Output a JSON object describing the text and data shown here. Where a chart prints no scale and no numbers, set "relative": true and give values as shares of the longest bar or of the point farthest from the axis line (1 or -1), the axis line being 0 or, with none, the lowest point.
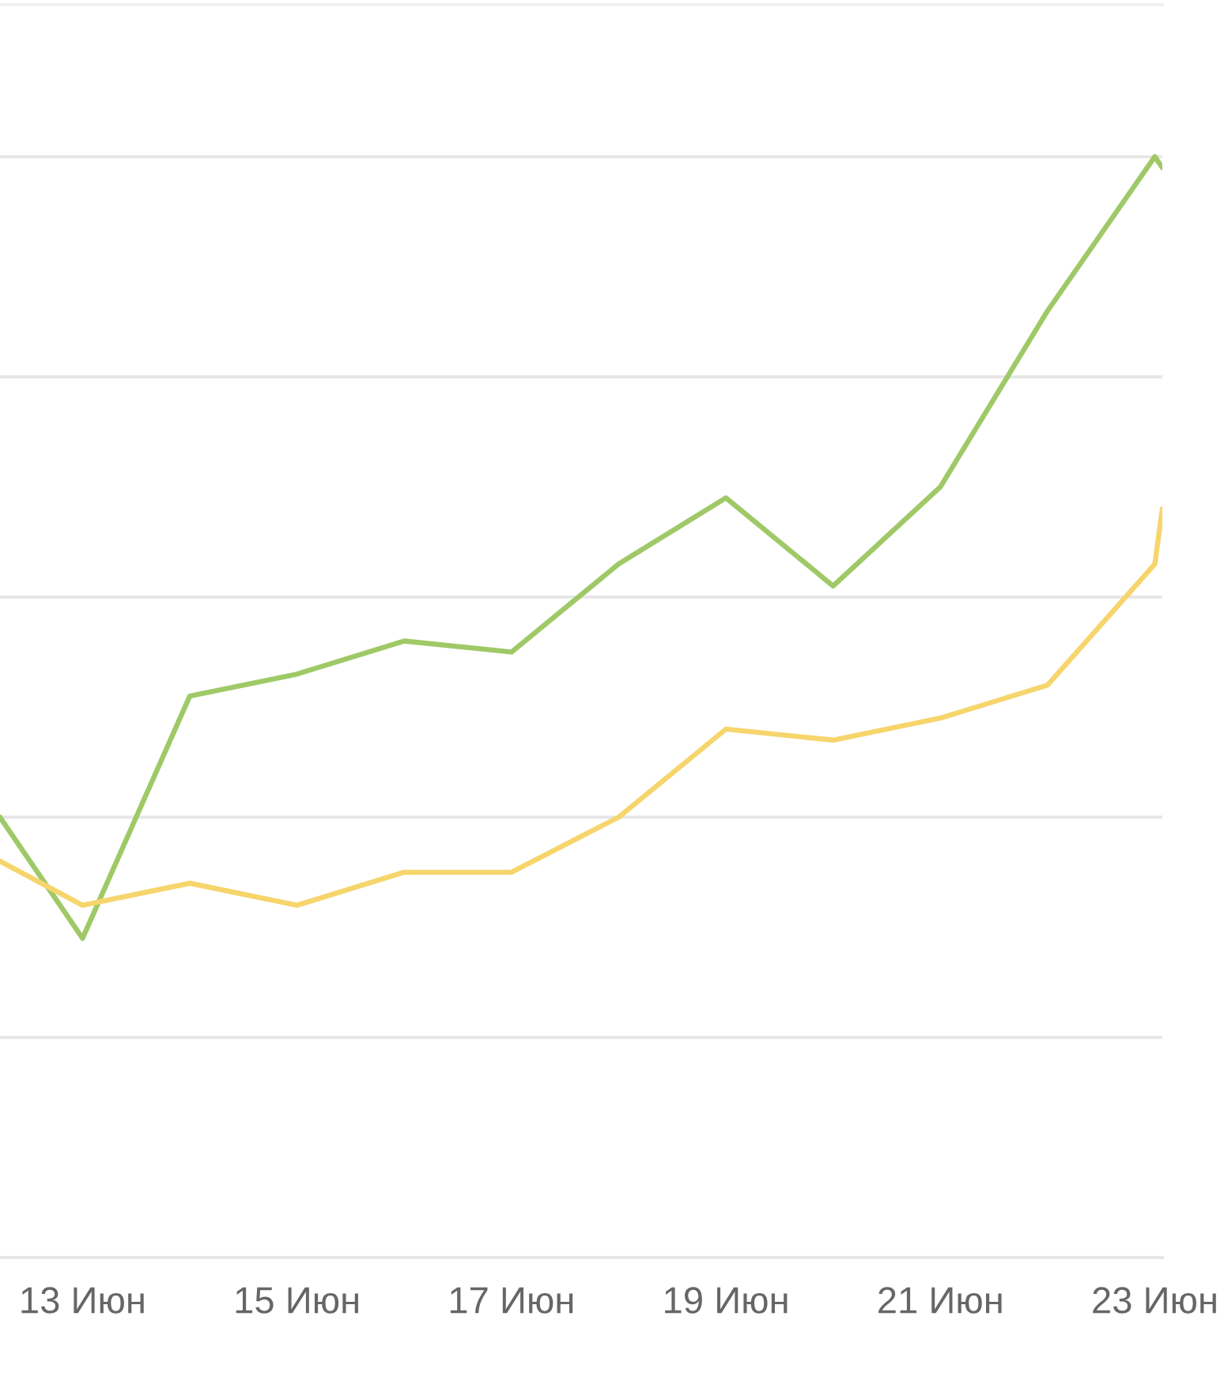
{
  "chart_data": {
    "type": "line",
    "relative": true,
    "grid": "y",
    "x": [
      12.23,
      13,
      14,
      15,
      16,
      17,
      18,
      19,
      20,
      21,
      22,
      23,
      23.07
    ],
    "xlim": [
      12.23,
      23.07
    ],
    "xticks": [
      {
        "value": 13,
        "label": "13 Июн"
      },
      {
        "value": 15,
        "label": "15 Июн"
      },
      {
        "value": 17,
        "label": "17 Июн"
      },
      {
        "value": 19,
        "label": "19 Июн"
      },
      {
        "value": 21,
        "label": "21 Июн"
      },
      {
        "value": 23,
        "label": "23 Июн"
      }
    ],
    "series": [
      {
        "color": "#9fc967",
        "values": [
          0.4,
          0.29,
          0.51,
          0.53,
          0.56,
          0.55,
          0.63,
          0.69,
          0.61,
          0.7,
          0.86,
          1,
          0.99
        ]
      },
      {
        "color": "#f6d56c",
        "values": [
          0.36,
          0.32,
          0.34,
          0.32,
          0.35,
          0.35,
          0.4,
          0.48,
          0.47,
          0.49,
          0.52,
          0.63,
          0.68
        ]
      }
    ]
  }
}
